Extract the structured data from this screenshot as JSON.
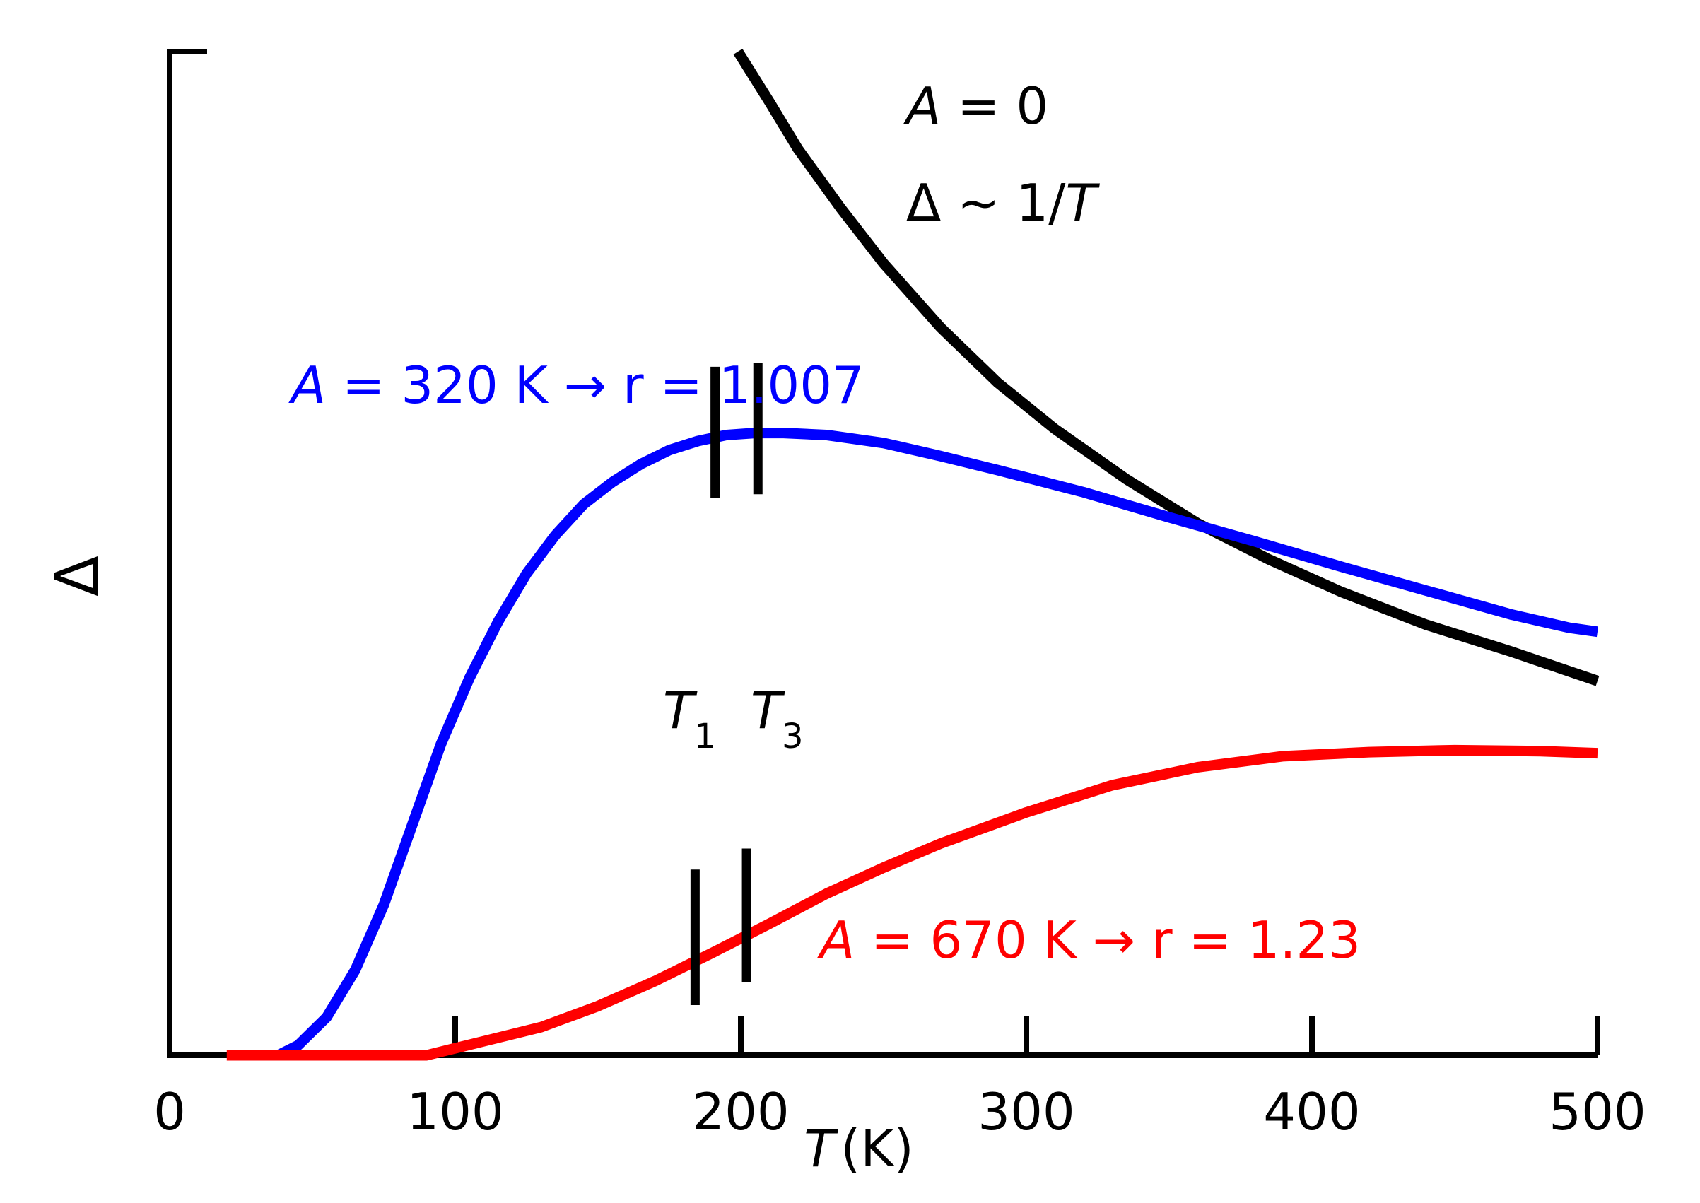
{
  "chart_data": {
    "type": "line",
    "xlim": [
      0,
      500
    ],
    "x_ticks": [
      0,
      100,
      200,
      300,
      400,
      500
    ],
    "x_tick_labels": [
      "0",
      "100",
      "200",
      "300",
      "400",
      "500"
    ],
    "xlabel": {
      "var": "T",
      "unit": "(K)"
    },
    "ylabel": "Δ",
    "ylim": [
      0,
      1
    ],
    "grid": false,
    "series": [
      {
        "color": "#000000",
        "x": [
          199,
          210,
          220,
          235,
          250,
          270,
          290,
          310,
          335,
          360,
          385,
          410,
          440,
          470,
          500
        ],
        "y": [
          1.0,
          0.95,
          0.903,
          0.844,
          0.789,
          0.725,
          0.67,
          0.624,
          0.574,
          0.53,
          0.494,
          0.462,
          0.429,
          0.402,
          0.373
        ]
      },
      {
        "color": "#0000ff",
        "x": [
          38,
          45,
          55,
          65,
          75,
          85,
          95,
          105,
          115,
          125,
          135,
          145,
          155,
          165,
          175,
          185,
          195,
          205,
          215,
          230,
          250,
          270,
          290,
          320,
          350,
          380,
          410,
          440,
          470,
          490,
          500
        ],
        "y": [
          0.0,
          0.01,
          0.038,
          0.085,
          0.15,
          0.23,
          0.31,
          0.376,
          0.432,
          0.48,
          0.518,
          0.549,
          0.571,
          0.589,
          0.603,
          0.612,
          0.618,
          0.62,
          0.62,
          0.618,
          0.61,
          0.597,
          0.583,
          0.561,
          0.536,
          0.512,
          0.487,
          0.463,
          0.439,
          0.426,
          0.422
        ]
      },
      {
        "color": "#ff0000",
        "x": [
          20,
          60,
          90,
          100,
          110,
          130,
          150,
          170,
          190,
          210,
          230,
          250,
          270,
          300,
          330,
          360,
          390,
          420,
          450,
          480,
          500
        ],
        "y": [
          0.0,
          0.0,
          0.0,
          0.007,
          0.014,
          0.028,
          0.049,
          0.074,
          0.102,
          0.131,
          0.161,
          0.187,
          0.211,
          0.242,
          0.269,
          0.287,
          0.298,
          0.302,
          0.304,
          0.303,
          0.301
        ]
      }
    ],
    "markers": [
      {
        "color": "#000000",
        "x": 191,
        "y_range": [
          0.555,
          0.686
        ]
      },
      {
        "color": "#000000",
        "x": 206,
        "y_range": [
          0.559,
          0.69
        ]
      },
      {
        "color": "#000000",
        "x": 184,
        "y_range": [
          0.05,
          0.185
        ]
      },
      {
        "color": "#000000",
        "x": 202,
        "y_range": [
          0.073,
          0.206
        ]
      }
    ],
    "annotations": {
      "black_line1": {
        "var": "A",
        "text": " = 0"
      },
      "black_line2": {
        "pre": "Δ ~ 1/",
        "var": "T"
      },
      "blue": {
        "var": "A",
        "text": " = 320 K → r = 1.007",
        "color": "#0000ff"
      },
      "red": {
        "var": "A",
        "text": " = 670 K → r = 1.23",
        "color": "#ff0000"
      },
      "t1": {
        "var": "T",
        "sub": "1"
      },
      "t3": {
        "var": "T",
        "sub": "3"
      }
    }
  }
}
